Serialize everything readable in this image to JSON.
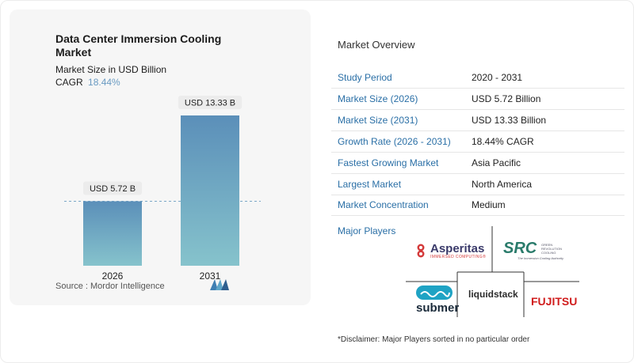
{
  "chart_data": {
    "type": "bar",
    "title": "Data Center Immersion Cooling Market",
    "subtitle": "Market Size in USD Billion",
    "cagr_label": "CAGR",
    "cagr_value": "18.44%",
    "categories": [
      "2026",
      "2031"
    ],
    "values": [
      5.72,
      13.33
    ],
    "data_labels": [
      "USD 5.72 B",
      "USD 13.33 B"
    ],
    "ylim": [
      0,
      13.33
    ],
    "colors": {
      "bar_top": "#5b8fb9",
      "bar_bottom": "#86c3cc",
      "dashed_line": "#7aa7c7"
    },
    "grid": false
  },
  "source": "Source :  Mordor Intelligence",
  "overview": {
    "title": "Market Overview",
    "rows": [
      {
        "label": "Study Period",
        "value": "2020 - 2031"
      },
      {
        "label": "Market Size (2026)",
        "value": "USD 5.72 Billion"
      },
      {
        "label": "Market Size (2031)",
        "value": "USD 13.33 Billion"
      },
      {
        "label": "Growth Rate (2026 - 2031)",
        "value": "18.44% CAGR"
      },
      {
        "label": "Fastest Growing Market",
        "value": "Asia Pacific"
      },
      {
        "label": "Largest Market",
        "value": "North America"
      },
      {
        "label": "Market Concentration",
        "value": "Medium"
      }
    ]
  },
  "players": {
    "title": "Major Players",
    "logos": {
      "asperitas": {
        "name": "Asperitas",
        "tagline": "IMMERSED COMPUTING®"
      },
      "src": {
        "name": "SRC",
        "subtitle": "GREEN REVOLUTION COOLING",
        "tagline": "The Immersion Cooling Authority"
      },
      "submer": {
        "name": "submer"
      },
      "liquidstack": {
        "name": "liquidstack"
      },
      "fujitsu": {
        "name": "FUJITSU"
      }
    }
  },
  "disclaimer": "*Disclaimer: Major Players sorted in no particular order"
}
